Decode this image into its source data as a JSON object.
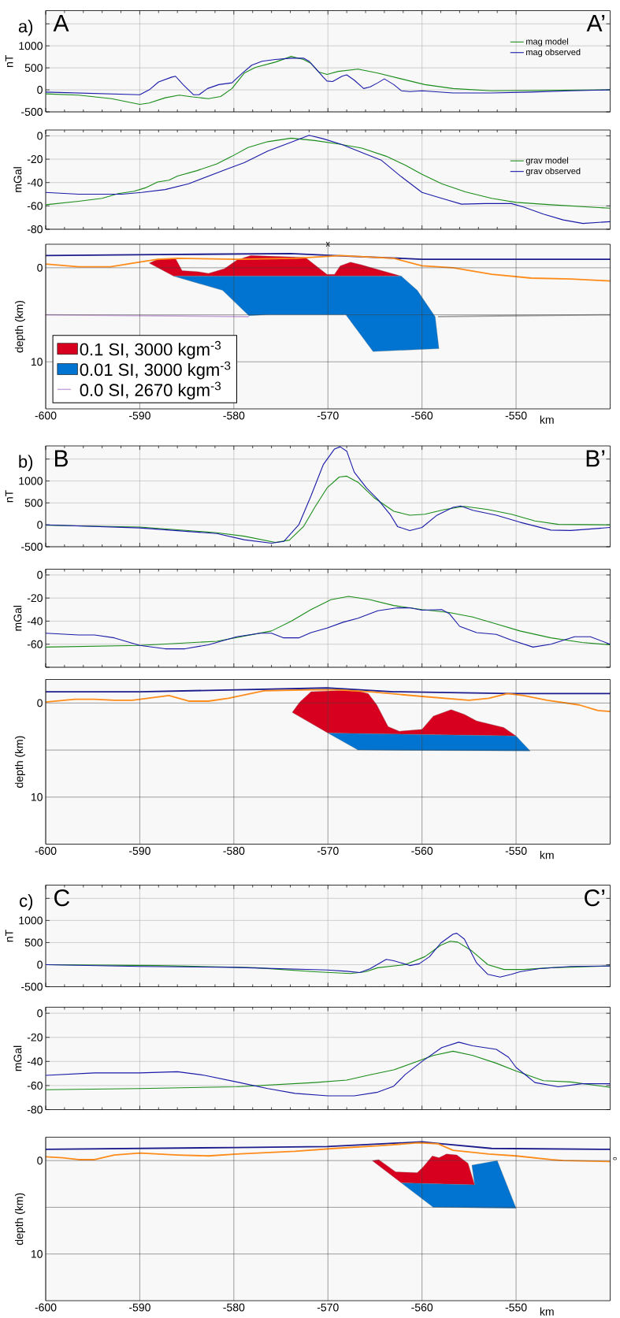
{
  "chart_data": [
    {
      "type": "line",
      "ylabel": "nT",
      "xlim": [
        -600,
        -540
      ],
      "ylim": [
        -500,
        1800
      ],
      "tick_labels": "y",
      "grid": true,
      "legend": "top right",
      "xticks": [
        -600,
        -590,
        -580,
        -570,
        -560,
        -550
      ],
      "yticks": [
        -500,
        0,
        500,
        1000,
        {
          "value": 1500,
          "label": null
        }
      ],
      "annotations": [
        "a)",
        "A",
        "A’"
      ],
      "series": [
        {
          "name": "mag model",
          "color": "#1a8c1a",
          "x": [
            -600,
            -596.5,
            -593,
            -590,
            -589,
            -587.3,
            -585.8,
            -584.4,
            -582.7,
            -581.4,
            -580.2,
            -578.9,
            -577.7,
            -575.6,
            -573.9,
            -572.6,
            -571.8,
            -571,
            -570.1,
            -568.9,
            -566.8,
            -564.7,
            -562.2,
            -559.7,
            -556.7,
            -552.6,
            -540
          ],
          "values": [
            -90,
            -120,
            -200,
            -330,
            -300,
            -180,
            -120,
            -160,
            -200,
            -150,
            30,
            380,
            510,
            630,
            760,
            690,
            600,
            410,
            350,
            420,
            470,
            380,
            250,
            120,
            30,
            -20,
            0
          ]
        },
        {
          "name": "mag observed",
          "color": "#1a1aa8",
          "x": [
            -600,
            -590,
            -589,
            -588,
            -586.6,
            -586.2,
            -585.4,
            -584.3,
            -583.7,
            -582.8,
            -581.6,
            -580.2,
            -579.1,
            -578.1,
            -577,
            -575.6,
            -573.9,
            -572.6,
            -572,
            -571.4,
            -570.5,
            -570.1,
            -569.5,
            -568.5,
            -568,
            -567.2,
            -566.2,
            -565.5,
            -564.7,
            -564,
            -563,
            -562.2,
            -561.3,
            -560,
            -558.8,
            -556.7,
            -552.6,
            -548.4,
            -544.2,
            -540
          ],
          "values": [
            -50,
            -110,
            0,
            180,
            290,
            310,
            120,
            -110,
            -110,
            30,
            120,
            160,
            380,
            560,
            650,
            690,
            720,
            720,
            650,
            510,
            290,
            200,
            190,
            310,
            340,
            220,
            30,
            70,
            160,
            250,
            120,
            -20,
            -40,
            -20,
            -40,
            -70,
            -70,
            -50,
            -20,
            0
          ]
        }
      ]
    },
    {
      "type": "line",
      "ylabel": "mGal",
      "xlim": [
        -600,
        -540
      ],
      "ylim": [
        -80,
        5
      ],
      "tick_labels": "y",
      "grid": true,
      "legend": "top right",
      "xticks": [
        -600,
        -590,
        -580,
        -570,
        -560,
        -550
      ],
      "yticks": [
        -80,
        -60,
        -40,
        -20,
        0
      ],
      "series": [
        {
          "name": "grav model",
          "color": "#1a8c1a",
          "x": [
            -600,
            -596.5,
            -594,
            -592.3,
            -590.6,
            -589.4,
            -588.1,
            -586.9,
            -586,
            -584,
            -581.8,
            -580.2,
            -578.5,
            -576.4,
            -573.9,
            -571.4,
            -568.9,
            -566.4,
            -563.8,
            -561.8,
            -560,
            -557.9,
            -555.4,
            -552.6,
            -550,
            -546.3,
            -540
          ],
          "values": [
            -59,
            -56,
            -53.5,
            -49.5,
            -47.5,
            -44.5,
            -39.5,
            -38,
            -34.5,
            -30,
            -24,
            -17.5,
            -10,
            -5,
            -2,
            -4,
            -7,
            -10.5,
            -17.5,
            -25,
            -33,
            -41,
            -48,
            -53.5,
            -57,
            -59,
            -62
          ]
        },
        {
          "name": "grav observed",
          "color": "#1a1aa8",
          "x": [
            -600,
            -596.5,
            -591.9,
            -589.8,
            -587.3,
            -584.8,
            -582.7,
            -580.6,
            -578.9,
            -576.4,
            -573.9,
            -572,
            -570.5,
            -568.5,
            -566,
            -564.3,
            -562.2,
            -560,
            -557.9,
            -555.8,
            -553.3,
            -550.5,
            -549.2,
            -547.1,
            -545,
            -542.9,
            -540
          ],
          "values": [
            -48.5,
            -50,
            -50,
            -48.5,
            -46,
            -41,
            -34.5,
            -28,
            -23,
            -13,
            -5.5,
            0.5,
            -2.5,
            -7.5,
            -15.5,
            -21,
            -35,
            -48.5,
            -53.5,
            -58.5,
            -58,
            -58,
            -61,
            -67,
            -72,
            -75,
            -73.5
          ]
        }
      ]
    },
    {
      "type": "line",
      "ylabel": "depth (km)",
      "xlabel": "km",
      "xlim": [
        -600,
        -540
      ],
      "ylim": [
        15,
        -2.5
      ],
      "grid": true,
      "legend": "bottom left",
      "xticks": [
        -600,
        -590,
        -580,
        -570,
        -560,
        -550
      ],
      "yticks": [
        0,
        {
          "value": 5,
          "label": null
        },
        10
      ],
      "annotations": [
        "x"
      ],
      "series": [
        {
          "type": "area",
          "name": "0.1 SI, 3000 kgm$^{-3}$",
          "color": "#d7001f",
          "x": [
            -589,
            -588.1,
            -586.2,
            -585.5,
            -583.9,
            -582.7,
            -581,
            -579.7,
            -578.2,
            -572.4,
            -570.1,
            -569.3,
            -568.7,
            -567.6,
            -566.4,
            -562.2,
            -586.4
          ],
          "values": [
            -0.5,
            -0.9,
            -1.0,
            0.3,
            0.4,
            0.6,
            0.1,
            -0.8,
            -1.3,
            -1.1,
            0.7,
            0.7,
            -0.2,
            -0.6,
            -0.3,
            0.9,
            0.9
          ]
        },
        {
          "type": "area",
          "name": "0.01 SI, 3000 kgm$^{-3}$",
          "color": "#0074d0",
          "x": [
            -586.4,
            -562.2,
            -560.5,
            -558.6,
            -558.2,
            -565.2,
            -568.1,
            -576.4,
            -578.4,
            -581.2
          ],
          "values": [
            0.9,
            0.9,
            2.4,
            5.2,
            8.6,
            8.9,
            5,
            5,
            5.1,
            2.4
          ]
        },
        {
          "type": "line",
          "name": "0.0 SI, 2670 kgm$^{-3}$",
          "color": "#c8a8d8",
          "x": [
            -600,
            -578.4
          ],
          "values": [
            5.0,
            5.2
          ]
        },
        {
          "type": "line",
          "color": "#a0a0a0",
          "x": [
            -558.3,
            -550,
            -540
          ],
          "values": [
            5.2,
            5.1,
            5.0
          ]
        },
        {
          "type": "line",
          "color": "#1c1c8c",
          "x": [
            -600,
            -588,
            -574,
            -567,
            -560,
            -540
          ],
          "values": [
            -1.3,
            -1.4,
            -1.5,
            -1.2,
            -0.9,
            -0.9
          ]
        },
        {
          "type": "line",
          "color": "#ff8c1a",
          "x": [
            -600,
            -596.5,
            -593.1,
            -590,
            -588.1,
            -586,
            -579.7,
            -573.5,
            -568.6,
            -563,
            -560,
            -556.7,
            -552.6,
            -548.4,
            -544.2,
            -540
          ],
          "values": [
            -0.4,
            -0.1,
            -0.1,
            -0.6,
            -0.9,
            -1.0,
            -0.9,
            -1.0,
            -1.3,
            -1.0,
            -0.2,
            0.0,
            0.7,
            1.1,
            1.2,
            1.4
          ]
        }
      ]
    },
    {
      "type": "line",
      "ylabel": "nT",
      "xlim": [
        -600,
        -540
      ],
      "ylim": [
        -500,
        1800
      ],
      "tick_labels": "y",
      "grid": true,
      "xticks": [
        -600,
        -590,
        -580,
        -570,
        -560,
        -550
      ],
      "yticks": [
        -500,
        0,
        500,
        1000,
        {
          "value": 1500,
          "label": null
        }
      ],
      "annotations": [
        "b)",
        "B",
        "B’"
      ],
      "series": [
        {
          "color": "#1a8c1a",
          "x": [
            -600,
            -590,
            -581.8,
            -578.9,
            -575.6,
            -574.1,
            -572.6,
            -571.4,
            -570.1,
            -568.8,
            -568,
            -566.8,
            -565.1,
            -563,
            -561.3,
            -559.7,
            -557.6,
            -555.5,
            -553,
            -550.5,
            -548,
            -545.5,
            -540
          ],
          "values": [
            -10,
            -50,
            -180,
            -260,
            -400,
            -350,
            -40,
            400,
            840,
            1090,
            1110,
            970,
            620,
            310,
            220,
            240,
            350,
            420,
            350,
            240,
            90,
            10,
            0
          ]
        },
        {
          "color": "#1a1aa8",
          "x": [
            -600,
            -590,
            -581.8,
            -578.9,
            -576,
            -574.7,
            -573.1,
            -571.8,
            -570.5,
            -569.3,
            -568.7,
            -568,
            -567.2,
            -565.9,
            -564.7,
            -563.4,
            -562.6,
            -561.3,
            -560,
            -558.4,
            -556.7,
            -555.9,
            -554.6,
            -552.1,
            -549.6,
            -546.3,
            -544.2,
            -540
          ],
          "values": [
            0,
            -70,
            -200,
            -340,
            -420,
            -380,
            0,
            660,
            1370,
            1730,
            1780,
            1680,
            1200,
            840,
            580,
            240,
            -40,
            -130,
            -60,
            220,
            400,
            430,
            330,
            220,
            60,
            -120,
            -130,
            -60
          ]
        }
      ]
    },
    {
      "type": "line",
      "ylabel": "mGal",
      "xlim": [
        -600,
        -540
      ],
      "ylim": [
        -80,
        5
      ],
      "tick_labels": "y",
      "grid": true,
      "xticks": [
        -600,
        -590,
        -580,
        -570,
        -560,
        -550
      ],
      "yticks": [
        {
          "value": -80,
          "label": null
        },
        -60,
        -40,
        -20,
        0
      ],
      "series": [
        {
          "color": "#1a8c1a",
          "x": [
            -600,
            -590,
            -581.8,
            -576,
            -573.9,
            -571.8,
            -569.7,
            -567.8,
            -565.5,
            -563,
            -560,
            -557.1,
            -554.6,
            -552.1,
            -549.6,
            -546.3,
            -543,
            -540
          ],
          "values": [
            -62.5,
            -61,
            -57.5,
            -48.5,
            -40,
            -30,
            -21.5,
            -18.5,
            -21.5,
            -26.5,
            -30,
            -32.5,
            -36.5,
            -42.5,
            -48.5,
            -54.5,
            -58.5,
            -60.5
          ]
        },
        {
          "color": "#1a1aa8",
          "x": [
            -600,
            -596.5,
            -594.8,
            -592.7,
            -590,
            -587.3,
            -585.2,
            -582.7,
            -579.7,
            -577.2,
            -576,
            -574.7,
            -573.1,
            -571.8,
            -570.1,
            -568.4,
            -566.8,
            -564.7,
            -562.6,
            -561.3,
            -560,
            -557.9,
            -557.1,
            -556,
            -554.2,
            -552.1,
            -550.5,
            -548.2,
            -546.3,
            -543.8,
            -542.1,
            -540
          ],
          "values": [
            -50.5,
            -52,
            -52,
            -54.5,
            -61,
            -64,
            -64,
            -60.5,
            -53.5,
            -50.5,
            -50.5,
            -54.5,
            -54.5,
            -50,
            -46,
            -41,
            -37.5,
            -31,
            -28.5,
            -28.5,
            -30.5,
            -30,
            -33.5,
            -44.5,
            -50,
            -51.5,
            -56.5,
            -62.5,
            -60,
            -53.5,
            -53.5,
            -60
          ]
        }
      ]
    },
    {
      "type": "line",
      "ylabel": "depth (km)",
      "xlabel": "km",
      "xlim": [
        -600,
        -540
      ],
      "ylim": [
        15,
        -2.5
      ],
      "grid": true,
      "xticks": [
        -600,
        -590,
        -580,
        -570,
        -560,
        -550
      ],
      "yticks": [
        0,
        {
          "value": 5,
          "label": null
        },
        10
      ],
      "series": [
        {
          "type": "area",
          "color": "#d7001f",
          "x": [
            -573.8,
            -573,
            -571.8,
            -567.2,
            -565.7,
            -564.8,
            -563.6,
            -562.4,
            -560,
            -558.8,
            -556.9,
            -555.5,
            -554.2,
            -551.3,
            -550,
            -570
          ],
          "values": [
            1.0,
            -0.1,
            -1.2,
            -1.4,
            -1.0,
            0.2,
            2.5,
            3.0,
            2.8,
            1.4,
            0.7,
            1.2,
            1.9,
            2.6,
            3.5,
            3.2
          ]
        },
        {
          "type": "area",
          "color": "#0074d0",
          "x": [
            -570,
            -550,
            -548.5,
            -566.8
          ],
          "values": [
            3.2,
            3.5,
            5.1,
            5.0
          ]
        },
        {
          "type": "line",
          "color": "#1c1c8c",
          "x": [
            -600,
            -590,
            -579.7,
            -570.1,
            -563,
            -550.5,
            -540
          ],
          "values": [
            -1.2,
            -1.2,
            -1.4,
            -1.6,
            -1.2,
            -1.0,
            -1.0
          ]
        },
        {
          "type": "line",
          "color": "#ff8c1a",
          "x": [
            -600,
            -596.9,
            -594.8,
            -592.7,
            -590.8,
            -586.9,
            -584.8,
            -582.7,
            -580.6,
            -576.8,
            -571.8,
            -568.9,
            -565.5,
            -560,
            -555,
            -552.9,
            -550.9,
            -549.2,
            -546.7,
            -543.3,
            -541.3,
            -540
          ],
          "values": [
            -0.1,
            -0.4,
            -0.4,
            -0.3,
            -0.3,
            -0.8,
            -0.2,
            -0.2,
            -0.5,
            -1.3,
            -1.4,
            -1.4,
            -1.2,
            -0.7,
            -0.3,
            -0.5,
            -1.0,
            -0.8,
            -0.3,
            0.2,
            0.8,
            0.9
          ]
        }
      ]
    },
    {
      "type": "line",
      "ylabel": "nT",
      "xlim": [
        -600,
        -540
      ],
      "ylim": [
        -500,
        1800
      ],
      "tick_labels": "y",
      "grid": true,
      "xticks": [
        -600,
        -590,
        -580,
        -570,
        -560,
        -550
      ],
      "yticks": [
        -500,
        0,
        500,
        1000,
        {
          "value": 1500,
          "label": null
        }
      ],
      "annotations": [
        "c)",
        "C",
        "C’"
      ],
      "series": [
        {
          "color": "#1a8c1a",
          "x": [
            -600,
            -588.1,
            -577.7,
            -571.4,
            -567.6,
            -566,
            -564.7,
            -561.8,
            -559.7,
            -558,
            -557,
            -556.2,
            -554.7,
            -553,
            -551.3,
            -549.2,
            -546.3,
            -540
          ],
          "values": [
            0,
            -20,
            -70,
            -160,
            -200,
            -160,
            -70,
            0,
            180,
            440,
            530,
            510,
            310,
            0,
            -110,
            -110,
            -70,
            -30
          ]
        },
        {
          "color": "#1a1aa8",
          "x": [
            -600,
            -590,
            -580.2,
            -570.1,
            -568,
            -566.6,
            -565.5,
            -563.8,
            -563,
            -561.3,
            -560.3,
            -559.2,
            -558,
            -556.7,
            -556.3,
            -555.5,
            -554.2,
            -553,
            -551.7,
            -550.5,
            -549.6,
            -547.5,
            -544.2,
            -540
          ],
          "values": [
            0,
            -40,
            -60,
            -120,
            -150,
            -180,
            -90,
            120,
            90,
            -20,
            20,
            180,
            490,
            690,
            710,
            580,
            40,
            -220,
            -280,
            -220,
            -160,
            -90,
            -40,
            -30
          ]
        }
      ]
    },
    {
      "type": "line",
      "ylabel": "mGal",
      "xlim": [
        -600,
        -540
      ],
      "ylim": [
        -80,
        5
      ],
      "tick_labels": "y",
      "grid": true,
      "xticks": [
        -600,
        -590,
        -580,
        -570,
        -560,
        -550
      ],
      "yticks": [
        -80,
        -60,
        -40,
        -20,
        0
      ],
      "series": [
        {
          "color": "#1a8c1a",
          "x": [
            -600,
            -590,
            -579.7,
            -571.4,
            -568,
            -565.5,
            -563,
            -560.5,
            -558.8,
            -556.7,
            -554.6,
            -552.1,
            -550,
            -547.1,
            -544.2,
            -540
          ],
          "values": [
            -63.5,
            -62.5,
            -61,
            -57.5,
            -55.5,
            -51,
            -47,
            -40,
            -35,
            -31.5,
            -35,
            -41.5,
            -48,
            -56,
            -57,
            -61.5
          ]
        },
        {
          "color": "#1a1aa8",
          "x": [
            -600,
            -594.8,
            -590,
            -586,
            -583.1,
            -579.7,
            -576.4,
            -573.5,
            -570,
            -567.2,
            -564.7,
            -563,
            -561.8,
            -560,
            -557.9,
            -556.1,
            -554.6,
            -552.1,
            -550.8,
            -550,
            -548.7,
            -548,
            -545.5,
            -543,
            -540
          ],
          "values": [
            -51.5,
            -49.5,
            -49.5,
            -48.5,
            -51.5,
            -57,
            -62.5,
            -66.5,
            -68.5,
            -68.5,
            -65.5,
            -60.5,
            -51,
            -40,
            -28.5,
            -24,
            -27,
            -30,
            -36.5,
            -45,
            -53,
            -57.5,
            -61,
            -58.5,
            -58.5
          ]
        }
      ]
    },
    {
      "type": "line",
      "ylabel": "depth (km)",
      "xlabel": "km",
      "xlim": [
        -600,
        -540
      ],
      "ylim": [
        15,
        -2.5
      ],
      "grid": true,
      "xticks": [
        -600,
        -590,
        -580,
        -570,
        -560,
        -550
      ],
      "yticks": [
        0,
        {
          "value": 5,
          "label": null
        },
        10
      ],
      "annotations": [
        "0"
      ],
      "series": [
        {
          "type": "area",
          "color": "#d7001f",
          "x": [
            -565.3,
            -564.6,
            -562.8,
            -560.5,
            -559.9,
            -558.9,
            -558.2,
            -557.4,
            -556.3,
            -555.1,
            -554.4,
            -562.2
          ],
          "values": [
            0,
            -0.1,
            1.2,
            1.3,
            0.7,
            -0.5,
            -0.3,
            -0.7,
            -0.6,
            0.3,
            2.6,
            2.4
          ]
        },
        {
          "type": "area",
          "color": "#0074d0",
          "x": [
            -562.2,
            -554.4,
            -554.7,
            -552,
            -550,
            -558.8
          ],
          "values": [
            2.4,
            2.6,
            0.5,
            0,
            5.1,
            5.0
          ]
        },
        {
          "type": "line",
          "color": "#1c1c8c",
          "x": [
            -600,
            -579.7,
            -570.1,
            -560,
            -557.9,
            -552.6,
            -540
          ],
          "values": [
            -1.2,
            -1.4,
            -1.5,
            -2.0,
            -1.8,
            -1.3,
            -1.2
          ]
        },
        {
          "type": "line",
          "color": "#ff8c1a",
          "x": [
            -600,
            -598.2,
            -596.5,
            -594.8,
            -592.7,
            -590,
            -586,
            -582.7,
            -579.7,
            -573.5,
            -569.3,
            -564.3,
            -560.4,
            -558.3,
            -556.7,
            -552.9,
            -550,
            -546.3,
            -545,
            -540
          ],
          "values": [
            -0.4,
            -0.3,
            -0.1,
            -0.1,
            -0.6,
            -0.8,
            -0.6,
            -0.5,
            -0.7,
            -1.0,
            -1.3,
            -1.6,
            -1.9,
            -1.8,
            -1.1,
            -0.7,
            -0.5,
            -0.1,
            0.0,
            0.1
          ]
        }
      ]
    }
  ]
}
